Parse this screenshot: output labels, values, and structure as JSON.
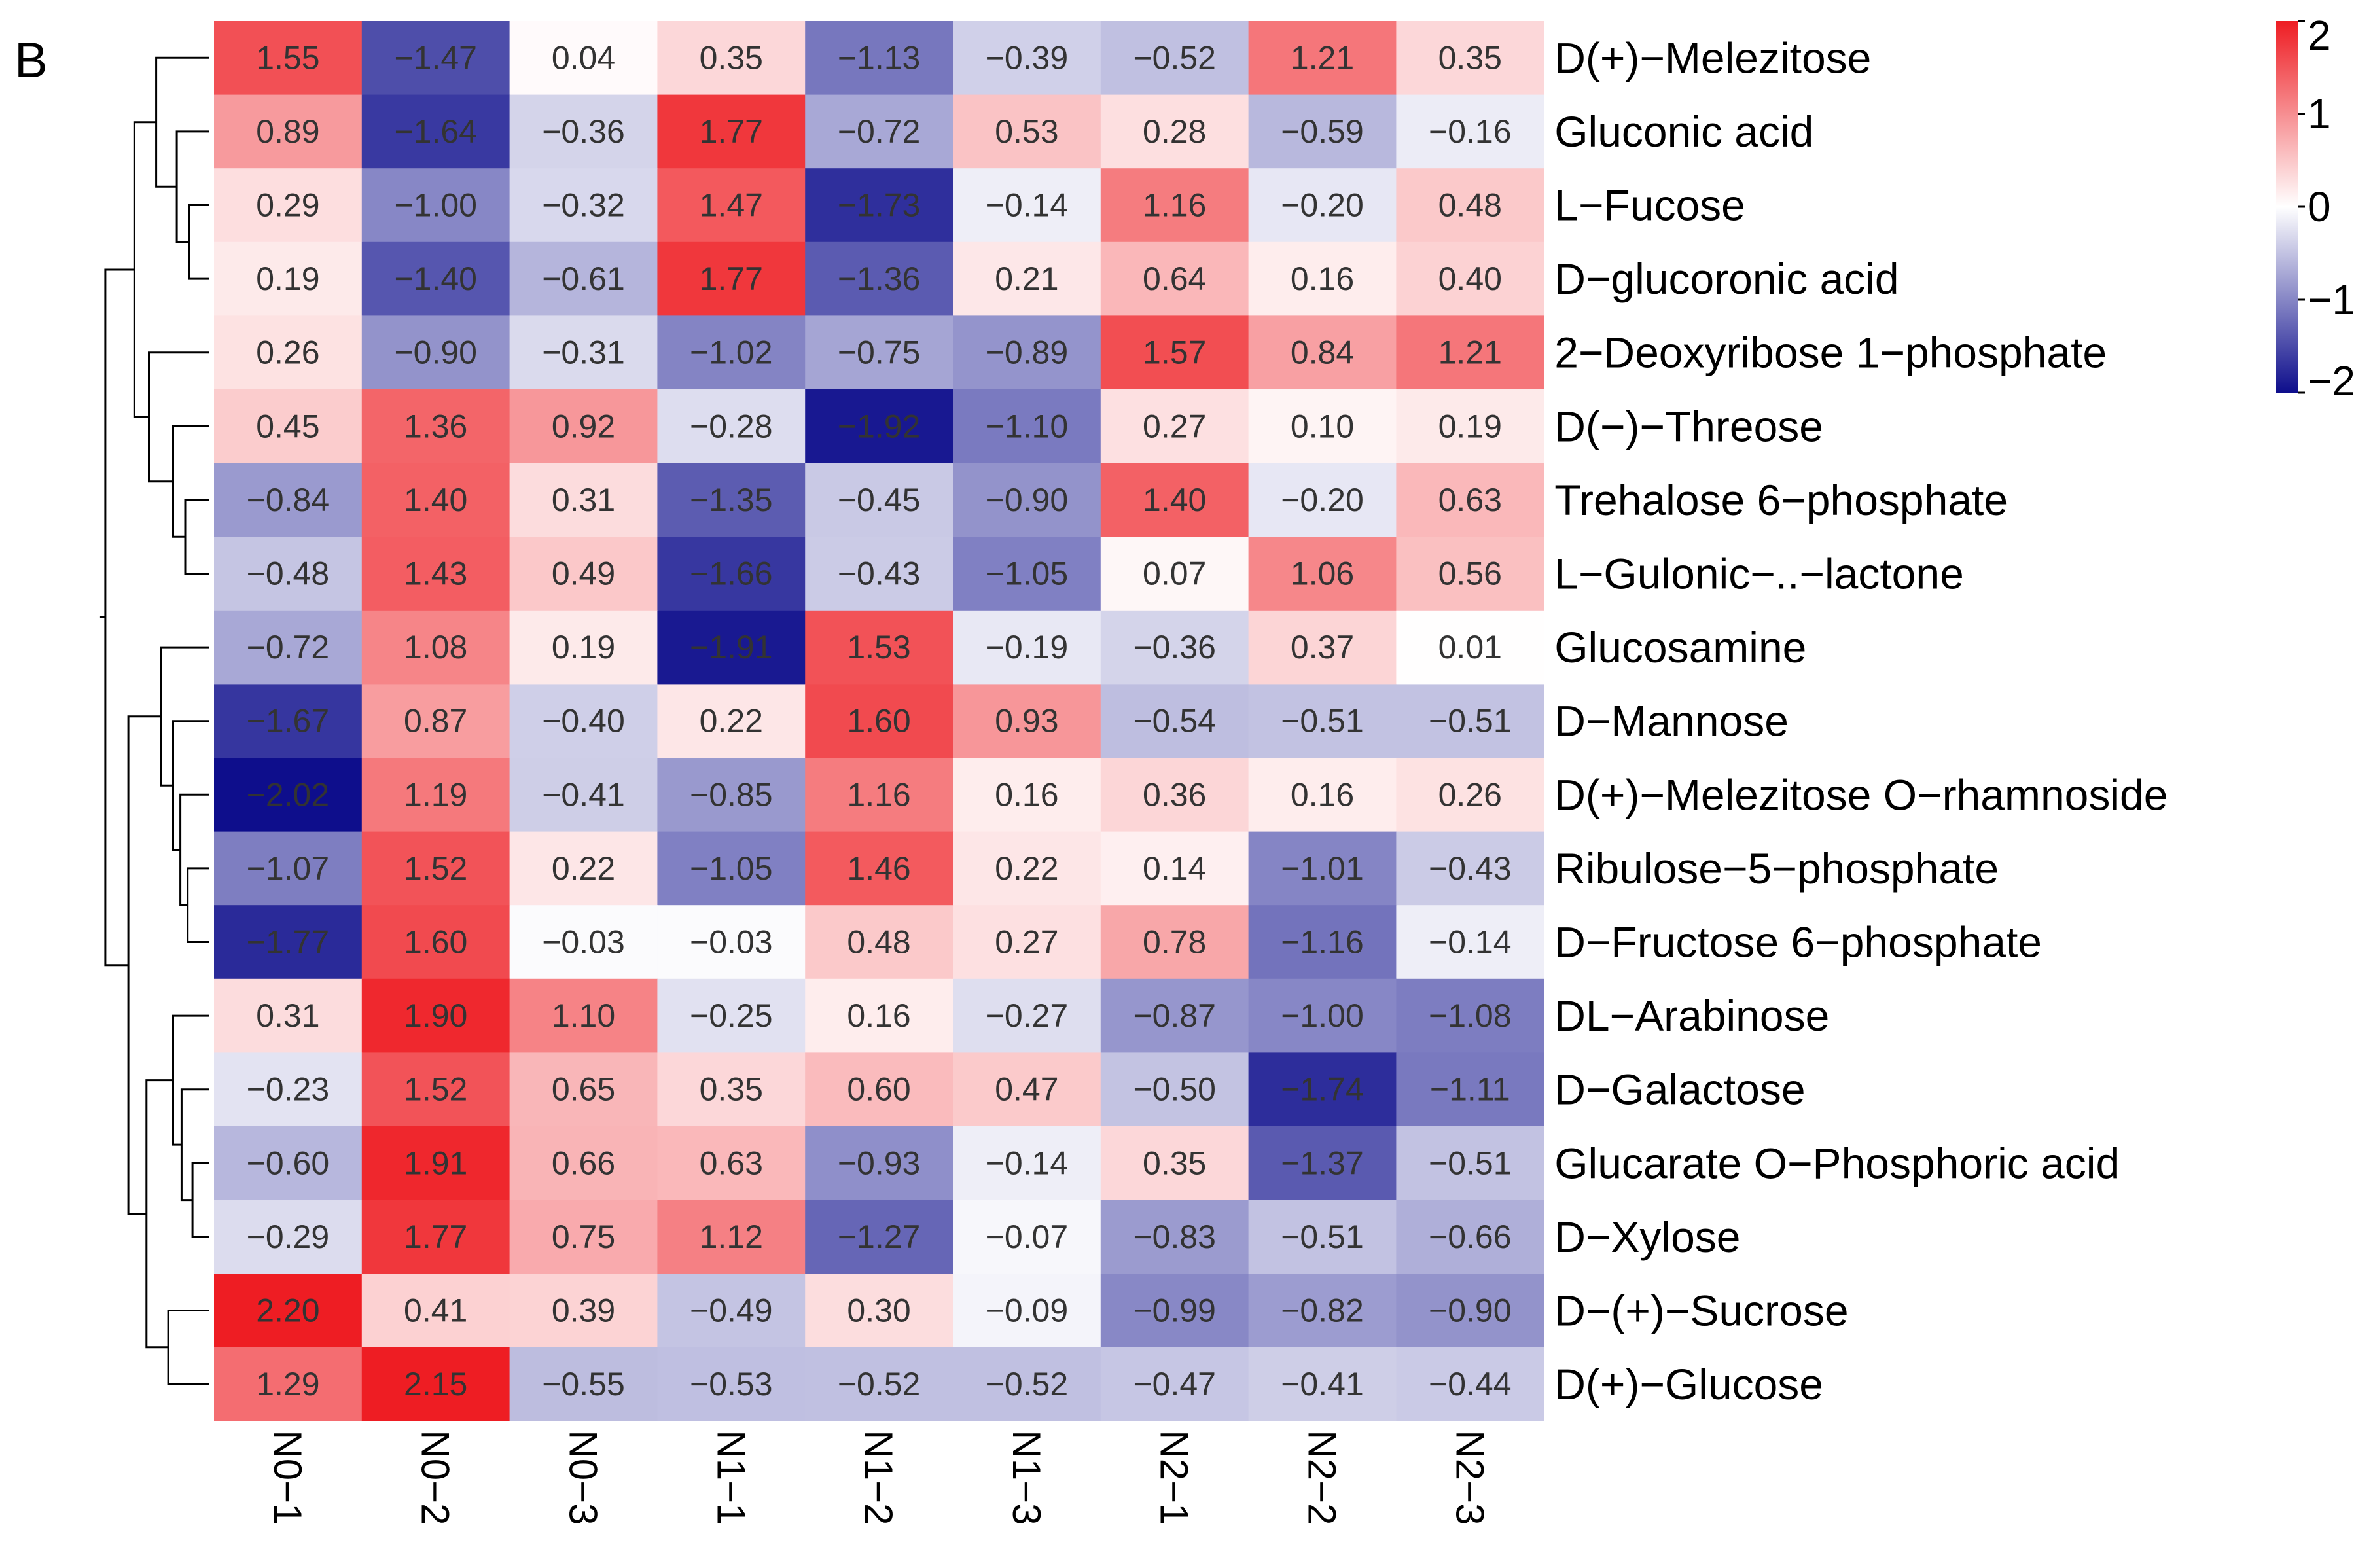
{
  "panel_label": "B",
  "chart_data": {
    "type": "heatmap",
    "title": "",
    "columns": [
      "N0−1",
      "N0−2",
      "N0−3",
      "N1−1",
      "N1−2",
      "N1−3",
      "N2−1",
      "N2−2",
      "N2−3"
    ],
    "rows": [
      "D(+)−Melezitose",
      "Gluconic acid",
      "L−Fucose",
      "D−glucoronic acid",
      "2−Deoxyribose 1−phosphate",
      "D(−)−Threose",
      "Trehalose 6−phosphate",
      "L−Gulonic−..−lactone",
      "Glucosamine",
      "D−Mannose",
      "D(+)−Melezitose O−rhamnoside",
      "Ribulose−5−phosphate",
      "D−Fructose 6−phosphate",
      "DL−Arabinose",
      "D−Galactose",
      "Glucarate O−Phosphoric acid",
      "D−Xylose",
      "D−(+)−Sucrose",
      "D(+)−Glucose"
    ],
    "values": [
      [
        1.55,
        -1.47,
        0.04,
        0.35,
        -1.13,
        -0.39,
        -0.52,
        1.21,
        0.35
      ],
      [
        0.89,
        -1.64,
        -0.36,
        1.77,
        -0.72,
        0.53,
        0.28,
        -0.59,
        -0.16
      ],
      [
        0.29,
        -1.0,
        -0.32,
        1.47,
        -1.73,
        -0.14,
        1.16,
        -0.2,
        0.48
      ],
      [
        0.19,
        -1.4,
        -0.61,
        1.77,
        -1.36,
        0.21,
        0.64,
        0.16,
        0.4
      ],
      [
        0.26,
        -0.9,
        -0.31,
        -1.02,
        -0.75,
        -0.89,
        1.57,
        0.84,
        1.21
      ],
      [
        0.45,
        1.36,
        0.92,
        -0.28,
        -1.92,
        -1.1,
        0.27,
        0.1,
        0.19
      ],
      [
        -0.84,
        1.4,
        0.31,
        -1.35,
        -0.45,
        -0.9,
        1.4,
        -0.2,
        0.63
      ],
      [
        -0.48,
        1.43,
        0.49,
        -1.66,
        -0.43,
        -1.05,
        0.07,
        1.06,
        0.56
      ],
      [
        -0.72,
        1.08,
        0.19,
        -1.91,
        1.53,
        -0.19,
        -0.36,
        0.37,
        0.01
      ],
      [
        -1.67,
        0.87,
        -0.4,
        0.22,
        1.6,
        0.93,
        -0.54,
        -0.51,
        -0.51
      ],
      [
        -2.02,
        1.19,
        -0.41,
        -0.85,
        1.16,
        0.16,
        0.36,
        0.16,
        0.26
      ],
      [
        -1.07,
        1.52,
        0.22,
        -1.05,
        1.46,
        0.22,
        0.14,
        -1.01,
        -0.43
      ],
      [
        -1.77,
        1.6,
        -0.03,
        -0.03,
        0.48,
        0.27,
        0.78,
        -1.16,
        -0.14
      ],
      [
        0.31,
        1.9,
        1.1,
        -0.25,
        0.16,
        -0.27,
        -0.87,
        -1.0,
        -1.08
      ],
      [
        -0.23,
        1.52,
        0.65,
        0.35,
        0.6,
        0.47,
        -0.5,
        -1.74,
        -1.11
      ],
      [
        -0.6,
        1.91,
        0.66,
        0.63,
        -0.93,
        -0.14,
        0.35,
        -1.37,
        -0.51
      ],
      [
        -0.29,
        1.77,
        0.75,
        1.12,
        -1.27,
        -0.07,
        -0.83,
        -0.51,
        -0.66
      ],
      [
        2.2,
        0.41,
        0.39,
        -0.49,
        0.3,
        -0.09,
        -0.99,
        -0.82,
        -0.9
      ],
      [
        1.29,
        2.15,
        -0.55,
        -0.53,
        -0.52,
        -0.52,
        -0.47,
        -0.41,
        -0.44
      ]
    ],
    "color_scale": {
      "min": -2,
      "max": 2,
      "low_color": "#0e0e8c",
      "mid_color": "#ffffff",
      "high_color": "#ee1d23",
      "ticks": [
        {
          "value": 2,
          "label": "2"
        },
        {
          "value": 1,
          "label": "1"
        },
        {
          "value": 0,
          "label": "0"
        },
        {
          "value": -1,
          "label": "−1"
        },
        {
          "value": -2,
          "label": "−2"
        }
      ]
    },
    "row_dendrogram": {
      "merges": [
        [
          -3,
          -4
        ],
        [
          -2,
          1
        ],
        [
          -1,
          2
        ],
        [
          -7,
          -8
        ],
        [
          -6,
          4
        ],
        [
          -5,
          5
        ],
        [
          3,
          6
        ],
        [
          -12,
          -13
        ],
        [
          -11,
          8
        ],
        [
          -10,
          9
        ],
        [
          -9,
          10
        ],
        [
          -16,
          -17
        ],
        [
          -15,
          12
        ],
        [
          -14,
          13
        ],
        [
          -18,
          -19
        ],
        [
          14,
          15
        ],
        [
          11,
          16
        ],
        [
          7,
          17
        ]
      ],
      "heights": [
        0.17,
        0.27,
        0.44,
        0.2,
        0.3,
        0.5,
        0.62,
        0.18,
        0.24,
        0.3,
        0.4,
        0.14,
        0.23,
        0.3,
        0.34,
        0.52,
        0.67,
        0.86
      ]
    },
    "legend_position": "top-right"
  }
}
